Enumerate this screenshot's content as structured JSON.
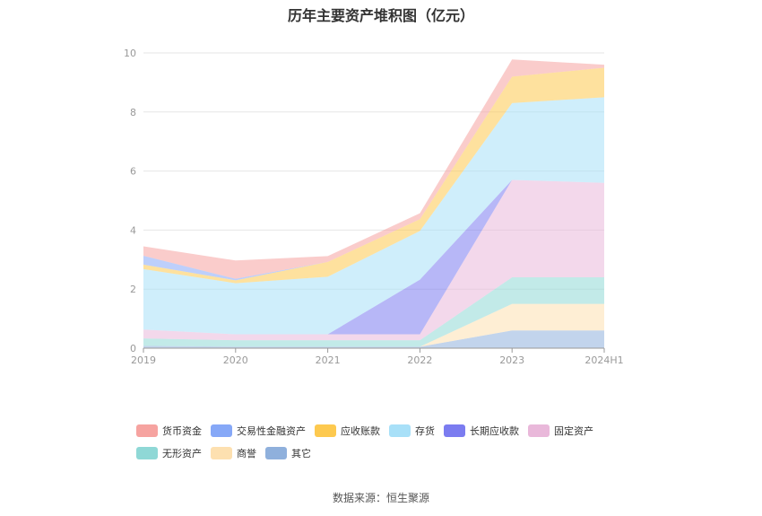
{
  "chart_data": {
    "type": "area",
    "stacked": true,
    "title": "历年主要资产堆积图（亿元）",
    "categories": [
      "2019",
      "2020",
      "2021",
      "2022",
      "2023",
      "2024H1"
    ],
    "y_ticks": [
      "0",
      "2",
      "4",
      "6",
      "8",
      "10"
    ],
    "ylim": [
      0,
      10
    ],
    "grid": true,
    "legend_position": "bottom",
    "series": [
      {
        "name": "其它",
        "color": "#8fb0dc",
        "values": [
          0.08,
          0.05,
          0.05,
          0.05,
          0.6,
          0.6
        ]
      },
      {
        "name": "商誉",
        "color": "#fde0b0",
        "values": [
          0.0,
          0.0,
          0.0,
          0.0,
          0.9,
          0.9
        ]
      },
      {
        "name": "无形资产",
        "color": "#8fd8d6",
        "values": [
          0.25,
          0.22,
          0.22,
          0.22,
          0.9,
          0.9
        ]
      },
      {
        "name": "固定资产",
        "color": "#e9b8da",
        "values": [
          0.3,
          0.2,
          0.2,
          0.2,
          3.3,
          3.2
        ]
      },
      {
        "name": "长期应收款",
        "color": "#7b7cf0",
        "values": [
          0.0,
          0.0,
          0.0,
          1.85,
          0.0,
          0.0
        ]
      },
      {
        "name": "存货",
        "color": "#a8e0f8",
        "values": [
          2.05,
          1.73,
          1.95,
          1.65,
          2.6,
          2.9
        ]
      },
      {
        "name": "应收账款",
        "color": "#fdc94f",
        "values": [
          0.15,
          0.1,
          0.5,
          0.4,
          0.9,
          1.0
        ]
      },
      {
        "name": "交易性金融资产",
        "color": "#86a8f7",
        "values": [
          0.3,
          0.05,
          0.0,
          0.0,
          0.0,
          0.0
        ]
      },
      {
        "name": "货币资金",
        "color": "#f6a3a0",
        "values": [
          0.32,
          0.62,
          0.2,
          0.2,
          0.58,
          0.1
        ]
      }
    ],
    "legend_order": [
      "货币资金",
      "交易性金融资产",
      "应收账款",
      "存货",
      "长期应收款",
      "固定资产",
      "无形资产",
      "商誉",
      "其它"
    ]
  },
  "source_text": "数据来源：恒生聚源"
}
